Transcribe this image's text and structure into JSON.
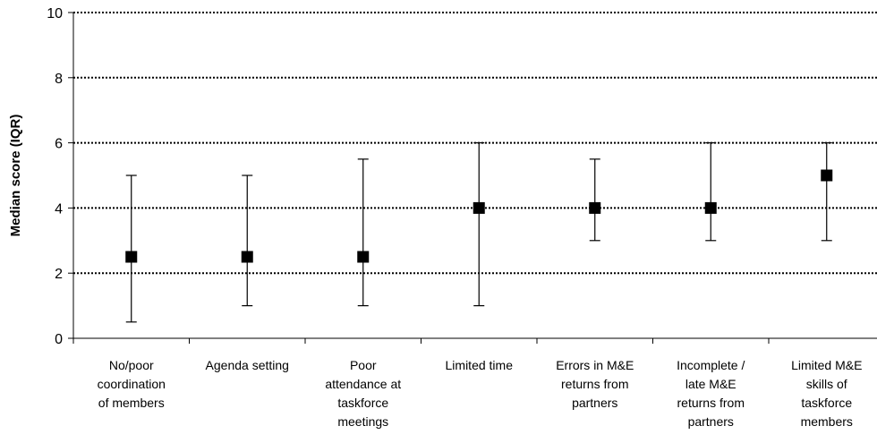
{
  "chart_data": {
    "type": "scatter",
    "title": "",
    "xlabel": "",
    "ylabel": "Median score (IQR)",
    "ylim": [
      0,
      10
    ],
    "yticks": [
      0,
      2,
      4,
      6,
      8,
      10
    ],
    "grid": true,
    "legend": "none",
    "marker_color": "#000000",
    "categories": [
      [
        "No/poor",
        "coordination",
        "of members"
      ],
      [
        "Agenda setting"
      ],
      [
        "Poor",
        "attendance at",
        "taskforce",
        "meetings"
      ],
      [
        "Limited time"
      ],
      [
        "Errors in M&E",
        "returns from",
        "partners"
      ],
      [
        "Incomplete /",
        "late M&E",
        "returns from",
        "partners"
      ],
      [
        "Limited M&E",
        "skills of",
        "taskforce",
        "members"
      ]
    ],
    "median": [
      2.5,
      2.5,
      2.5,
      4,
      4,
      4,
      5
    ],
    "iqr_low": [
      0.5,
      1,
      1,
      1,
      3,
      3,
      3
    ],
    "iqr_high": [
      5,
      5,
      5.5,
      6,
      5.5,
      6,
      6
    ]
  }
}
